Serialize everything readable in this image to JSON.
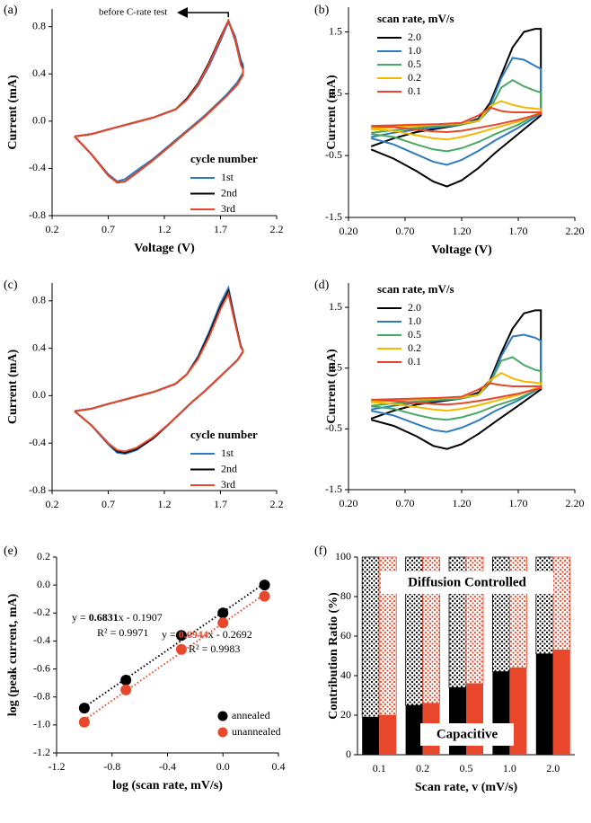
{
  "chart_data": [
    {
      "type": "line",
      "panel_label": "(a)",
      "xlabel": "Voltage (V)",
      "ylabel": "Current (mA)",
      "annotation": "before C-rate test",
      "legend_title": "cycle number",
      "xlim": [
        0.2,
        2.2
      ],
      "xticks": [
        0.2,
        0.7,
        1.2,
        1.7,
        2.2
      ],
      "ylim": [
        -0.8,
        0.95
      ],
      "yticks": [
        -0.8,
        -0.4,
        {
          "value": 0,
          "label": "0.0"
        },
        0.4,
        0.8
      ],
      "x": [
        0.4,
        0.55,
        0.7,
        0.9,
        1.1,
        1.3,
        1.4,
        1.5,
        1.6,
        1.7,
        1.77,
        1.83,
        1.88,
        1.9,
        1.9,
        1.85,
        1.75,
        1.65,
        1.55,
        1.45,
        1.35,
        1.25,
        1.1,
        0.95,
        0.85,
        0.78,
        0.7,
        0.55,
        0.4
      ],
      "series": [
        {
          "name": "1st",
          "color": "#2e7bbf",
          "values": [
            -0.13,
            -0.11,
            -0.07,
            -0.02,
            0.03,
            0.1,
            0.18,
            0.3,
            0.47,
            0.68,
            0.84,
            0.72,
            0.52,
            0.48,
            0.41,
            0.33,
            0.22,
            0.13,
            0.04,
            -0.04,
            -0.12,
            -0.2,
            -0.32,
            -0.42,
            -0.49,
            -0.51,
            -0.45,
            -0.28,
            -0.13
          ]
        },
        {
          "name": "2nd",
          "color": "#000000",
          "values": [
            -0.13,
            -0.11,
            -0.07,
            -0.02,
            0.03,
            0.1,
            0.19,
            0.32,
            0.5,
            0.71,
            0.85,
            0.69,
            0.49,
            0.45,
            0.39,
            0.31,
            0.21,
            0.12,
            0.03,
            -0.05,
            -0.13,
            -0.21,
            -0.33,
            -0.44,
            -0.51,
            -0.52,
            -0.46,
            -0.28,
            -0.13
          ]
        },
        {
          "name": "3rd",
          "color": "#e8472b",
          "values": [
            -0.13,
            -0.11,
            -0.07,
            -0.02,
            0.03,
            0.1,
            0.18,
            0.31,
            0.49,
            0.7,
            0.85,
            0.7,
            0.48,
            0.44,
            0.39,
            0.31,
            0.21,
            0.12,
            0.03,
            -0.05,
            -0.13,
            -0.21,
            -0.33,
            -0.44,
            -0.51,
            -0.52,
            -0.46,
            -0.28,
            -0.13
          ]
        }
      ]
    },
    {
      "type": "line",
      "panel_label": "(b)",
      "xlabel": "Voltage (V)",
      "ylabel": "Current (mA)",
      "legend_title": "scan rate, mV/s",
      "xlim": [
        0.2,
        2.2
      ],
      "xticks": [
        {
          "value": 0.2,
          "label": "0.20"
        },
        {
          "value": 0.7,
          "label": "0.70"
        },
        {
          "value": 1.2,
          "label": "1.20"
        },
        {
          "value": 1.7,
          "label": "1.70"
        },
        {
          "value": 2.2,
          "label": "2.20"
        }
      ],
      "ylim": [
        -1.5,
        1.9
      ],
      "yticks": [
        -1.5,
        -0.5,
        0.5,
        1.5
      ],
      "x": [
        0.4,
        0.6,
        0.8,
        1.0,
        1.2,
        1.35,
        1.45,
        1.55,
        1.65,
        1.75,
        1.85,
        1.9,
        1.9,
        1.7,
        1.5,
        1.35,
        1.2,
        1.07,
        0.95,
        0.8,
        0.6,
        0.4
      ],
      "series": [
        {
          "name": "2.0",
          "color": "#000000",
          "values": [
            -0.35,
            -0.22,
            -0.12,
            -0.06,
            0.0,
            0.1,
            0.35,
            0.8,
            1.25,
            1.5,
            1.55,
            1.55,
            0.15,
            -0.15,
            -0.45,
            -0.7,
            -0.9,
            -1.0,
            -0.92,
            -0.75,
            -0.55,
            -0.4
          ]
        },
        {
          "name": "1.0",
          "color": "#2e7bbf",
          "values": [
            -0.2,
            -0.13,
            -0.08,
            -0.04,
            0.0,
            0.08,
            0.3,
            0.75,
            1.08,
            1.05,
            0.95,
            0.9,
            0.18,
            -0.05,
            -0.25,
            -0.42,
            -0.57,
            -0.65,
            -0.6,
            -0.48,
            -0.32,
            -0.22
          ]
        },
        {
          "name": "0.5",
          "color": "#4aa865",
          "values": [
            -0.13,
            -0.09,
            -0.05,
            -0.02,
            0.0,
            0.06,
            0.25,
            0.6,
            0.72,
            0.62,
            0.55,
            0.52,
            0.2,
            0.0,
            -0.15,
            -0.28,
            -0.38,
            -0.43,
            -0.4,
            -0.32,
            -0.2,
            -0.15
          ]
        },
        {
          "name": "0.2",
          "color": "#f5b800",
          "values": [
            -0.06,
            -0.04,
            -0.02,
            0.0,
            0.02,
            0.06,
            0.3,
            0.38,
            0.32,
            0.28,
            0.26,
            0.25,
            0.2,
            0.05,
            -0.05,
            -0.13,
            -0.2,
            -0.24,
            -0.22,
            -0.17,
            -0.1,
            -0.07
          ]
        },
        {
          "name": "0.1",
          "color": "#e8472b",
          "values": [
            -0.02,
            -0.01,
            0.0,
            0.01,
            0.03,
            0.15,
            0.28,
            0.22,
            0.2,
            0.2,
            0.2,
            0.2,
            0.18,
            0.08,
            0.0,
            -0.05,
            -0.1,
            -0.12,
            -0.11,
            -0.08,
            -0.04,
            -0.03
          ]
        }
      ]
    },
    {
      "type": "line",
      "panel_label": "(c)",
      "ylabel": "Current (mA)",
      "legend_title": "cycle number",
      "xlim": [
        0.2,
        2.2
      ],
      "xticks": [
        0.2,
        0.7,
        1.2,
        1.7,
        2.2
      ],
      "ylim": [
        -0.8,
        0.95
      ],
      "yticks": [
        -0.8,
        -0.4,
        {
          "value": 0,
          "label": "0.0"
        },
        0.4,
        0.8
      ],
      "x": [
        0.4,
        0.55,
        0.7,
        0.9,
        1.1,
        1.3,
        1.4,
        1.5,
        1.6,
        1.7,
        1.77,
        1.83,
        1.88,
        1.9,
        1.9,
        1.85,
        1.75,
        1.65,
        1.55,
        1.45,
        1.35,
        1.25,
        1.1,
        0.95,
        0.85,
        0.78,
        0.7,
        0.55,
        0.4
      ],
      "series": [
        {
          "name": "1st",
          "color": "#2e7bbf",
          "values": [
            -0.13,
            -0.11,
            -0.07,
            -0.02,
            0.03,
            0.1,
            0.18,
            0.33,
            0.54,
            0.78,
            0.91,
            0.64,
            0.42,
            0.38,
            0.37,
            0.3,
            0.21,
            0.12,
            0.03,
            -0.05,
            -0.14,
            -0.23,
            -0.36,
            -0.46,
            -0.49,
            -0.48,
            -0.41,
            -0.25,
            -0.13
          ]
        },
        {
          "name": "2nd",
          "color": "#000000",
          "values": [
            -0.13,
            -0.11,
            -0.07,
            -0.02,
            0.03,
            0.1,
            0.18,
            0.32,
            0.52,
            0.75,
            0.88,
            0.62,
            0.42,
            0.38,
            0.37,
            0.3,
            0.21,
            0.12,
            0.03,
            -0.05,
            -0.14,
            -0.23,
            -0.36,
            -0.45,
            -0.48,
            -0.47,
            -0.4,
            -0.25,
            -0.13
          ]
        },
        {
          "name": "3rd",
          "color": "#e8472b",
          "values": [
            -0.13,
            -0.11,
            -0.07,
            -0.02,
            0.03,
            0.1,
            0.18,
            0.31,
            0.5,
            0.73,
            0.86,
            0.61,
            0.41,
            0.38,
            0.37,
            0.3,
            0.21,
            0.12,
            0.03,
            -0.05,
            -0.14,
            -0.23,
            -0.35,
            -0.44,
            -0.47,
            -0.46,
            -0.4,
            -0.25,
            -0.13
          ]
        }
      ]
    },
    {
      "type": "line",
      "panel_label": "(d)",
      "ylabel": "Current (mA)",
      "legend_title": "scan rate, mV/s",
      "xlim": [
        0.2,
        2.2
      ],
      "xticks": [
        {
          "value": 0.2,
          "label": "0.20"
        },
        {
          "value": 0.7,
          "label": "0.70"
        },
        {
          "value": 1.2,
          "label": "1.20"
        },
        {
          "value": 1.7,
          "label": "1.70"
        },
        {
          "value": 2.2,
          "label": "2.20"
        }
      ],
      "ylim": [
        -1.5,
        1.9
      ],
      "yticks": [
        -1.5,
        -0.5,
        0.5,
        1.5
      ],
      "x": [
        0.4,
        0.6,
        0.8,
        1.0,
        1.2,
        1.35,
        1.45,
        1.55,
        1.65,
        1.75,
        1.85,
        1.9,
        1.9,
        1.7,
        1.5,
        1.35,
        1.2,
        1.07,
        0.95,
        0.8,
        0.6,
        0.4
      ],
      "series": [
        {
          "name": "2.0",
          "color": "#000000",
          "values": [
            -0.33,
            -0.2,
            -0.1,
            -0.05,
            0.0,
            0.1,
            0.3,
            0.75,
            1.15,
            1.4,
            1.45,
            1.45,
            0.15,
            -0.12,
            -0.38,
            -0.58,
            -0.75,
            -0.83,
            -0.78,
            -0.62,
            -0.45,
            -0.35
          ]
        },
        {
          "name": "1.0",
          "color": "#2e7bbf",
          "values": [
            -0.18,
            -0.12,
            -0.07,
            -0.03,
            0.0,
            0.07,
            0.25,
            0.7,
            1.02,
            1.05,
            1.0,
            0.95,
            0.18,
            -0.03,
            -0.2,
            -0.36,
            -0.48,
            -0.55,
            -0.52,
            -0.42,
            -0.28,
            -0.2
          ]
        },
        {
          "name": "0.5",
          "color": "#4aa865",
          "values": [
            -0.12,
            -0.08,
            -0.05,
            -0.02,
            0.0,
            0.06,
            0.25,
            0.62,
            0.68,
            0.55,
            0.47,
            0.45,
            0.18,
            0.0,
            -0.12,
            -0.23,
            -0.31,
            -0.35,
            -0.33,
            -0.27,
            -0.17,
            -0.13
          ]
        },
        {
          "name": "0.2",
          "color": "#f5b800",
          "values": [
            -0.05,
            -0.03,
            -0.02,
            0.0,
            0.02,
            0.06,
            0.3,
            0.42,
            0.33,
            0.28,
            0.26,
            0.25,
            0.2,
            0.06,
            -0.04,
            -0.11,
            -0.17,
            -0.2,
            -0.18,
            -0.14,
            -0.09,
            -0.06
          ]
        },
        {
          "name": "0.1",
          "color": "#e8472b",
          "values": [
            -0.02,
            -0.01,
            0.0,
            0.01,
            0.03,
            0.15,
            0.25,
            0.22,
            0.2,
            0.2,
            0.2,
            0.2,
            0.17,
            0.08,
            0.01,
            -0.04,
            -0.08,
            -0.1,
            -0.09,
            -0.07,
            -0.04,
            -0.02
          ]
        }
      ]
    },
    {
      "type": "scatter",
      "panel_label": "(e)",
      "xlabel": "log (scan rate, mV/s)",
      "ylabel": "log (peak current, mA)",
      "trendline": "linear",
      "xlim": [
        -1.2,
        0.4
      ],
      "xticks": [
        -1.2,
        -0.8,
        -0.4,
        {
          "value": 0,
          "label": "0.0"
        },
        0.4
      ],
      "ylim": [
        -1.2,
        0.2
      ],
      "yticks": [
        -1.2,
        {
          "value": -1,
          "label": "-1.0"
        },
        -0.8,
        -0.6,
        -0.4,
        -0.2,
        {
          "value": 0,
          "label": "0.0"
        },
        0.2
      ],
      "x": [
        -1.0,
        -0.7,
        -0.3,
        0.0,
        0.3
      ],
      "series": [
        {
          "name": "annealed",
          "color": "#000000",
          "values": [
            -0.88,
            -0.68,
            -0.36,
            -0.2,
            0.0
          ]
        },
        {
          "name": "unannealed",
          "color": "#e8472b",
          "values": [
            -0.98,
            -0.75,
            -0.46,
            -0.27,
            -0.08
          ]
        }
      ],
      "equations": [
        {
          "y": "y = ",
          "slope": "0.6831",
          "rest": "x - 0.1907",
          "r2": "R² = 0.9971"
        },
        {
          "y": "y = ",
          "slope": "0.6944",
          "rest": "x - 0.2692",
          "r2": "R² = 0.9983"
        }
      ]
    },
    {
      "type": "stacked_bar",
      "panel_label": "(f)",
      "xlabel": "Scan rate, v (mV/s)",
      "ylabel": "Contribution Ratio (%)",
      "labels": {
        "diffusion": "Diffusion Controlled",
        "capacitive": "Capacitive"
      },
      "ylim": [
        0,
        100
      ],
      "yticks": [
        0,
        20,
        40,
        60,
        80,
        100
      ],
      "categories": [
        "0.1",
        "0.2",
        "0.5",
        "1.0",
        "2.0"
      ],
      "groups": [
        {
          "color": "#000000",
          "capacitive": [
            19,
            25,
            34,
            42,
            51
          ],
          "diffusion": [
            81,
            75,
            66,
            58,
            49
          ]
        },
        {
          "color": "#e8472b",
          "capacitive": [
            20,
            26,
            36,
            44,
            53
          ],
          "diffusion": [
            80,
            74,
            64,
            56,
            47
          ]
        }
      ]
    }
  ]
}
